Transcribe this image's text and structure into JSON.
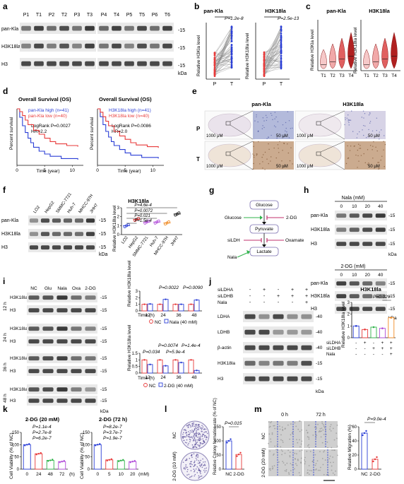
{
  "colors": {
    "blue": "#2b3fd6",
    "red": "#e83a3a",
    "green": "#2fb34a",
    "purple": "#b04ad8",
    "orange": "#f08a24",
    "dark_red": "#7b1a1a",
    "blot_band": "#2a2a2a",
    "blot_bg": "#e9e9e9",
    "ihc_brown": "#b98f6a",
    "ihc_blue": "#9aa3cf"
  },
  "panels": {
    "a": {
      "label": "a",
      "lanes_left": [
        "P1",
        "T1",
        "P2",
        "T2",
        "P3",
        "T3"
      ],
      "lanes_right": [
        "P4",
        "T4",
        "P5",
        "T5",
        "P6",
        "T6"
      ],
      "rows": [
        "pan-Kla",
        "H3K18la",
        "H3"
      ],
      "marker_top": "-15",
      "marker_mid": "-15",
      "marker_bottom": "-15",
      "unit": "kDa"
    },
    "b": {
      "label": "b",
      "left_title": "pan-Kla",
      "left_p": "P=1.2e-8",
      "left_ylabel": "Relative H3Kla level",
      "right_title": "H3K18la",
      "right_p": "P=2.5e-13",
      "right_ylabel": "Relative H3K18la level",
      "xticks": [
        "P",
        "T"
      ]
    },
    "c": {
      "label": "c",
      "left_title": "pan-Kla",
      "right_title": "H3K18la",
      "left_ylabel": "Relative H3Kla level",
      "right_ylabel": "Relative H3K18la level",
      "xticks": [
        "T1",
        "T2",
        "T3",
        "T4"
      ]
    },
    "d": {
      "label": "d",
      "left": {
        "title": "Overall Survival (OS)",
        "legend_high": "pan-Kla high (n=41)",
        "legend_low": "pan-Kla low (n=40)",
        "stat1": "LogRank P=0.0027",
        "stat2": "HR=2.2",
        "xlabel": "Time (year)",
        "ylabel": "Percent survival"
      },
      "right": {
        "title": "Overall Survival (OS)",
        "legend_high": "H3K18la high (n=41)",
        "legend_low": "H3K18la low (n=40)",
        "stat1": "LogRank P=0.0086",
        "stat2": "HR=2.0",
        "xlabel": "Time (year)",
        "ylabel": "Percent survival"
      },
      "xticks": [
        "0",
        "5",
        "10"
      ]
    },
    "e": {
      "label": "e",
      "title_left": "pan-Kla",
      "title_right": "H3K18la",
      "row_p": "P",
      "row_t": "T",
      "scale_large": "1000 μM",
      "scale_small": "50 μM"
    },
    "f": {
      "label": "f",
      "lanes": [
        "LO2",
        "HepG2",
        "SMMC-7721",
        "Huh-7",
        "MHCC-97H",
        "JHH7"
      ],
      "rows": [
        "pan-Kla",
        "H3K18la",
        "H3"
      ],
      "marker": "-15",
      "unit": "kDa",
      "chart_title": "H3K18la",
      "ylabel": "Relative H3K18la level",
      "p1": "P=4.6e-4",
      "p2": "P=0.0072",
      "p3": "P=0.021",
      "p4": "P=1.5e-4"
    },
    "g": {
      "label": "g",
      "glucose": "Glucose",
      "pyruvate": "Pyruvate",
      "lactate": "Lactate",
      "glucose_in": "Glucose",
      "dg": "2-DG",
      "silhd": "siLDH",
      "oxamate": "Oxamate",
      "nala": "Nala"
    },
    "h": {
      "label": "h",
      "top_title": "Nala (mM)",
      "top_doses": [
        "0",
        "10",
        "20",
        "40"
      ],
      "bottom_title": "2-DG (mM)",
      "bottom_doses": [
        "0",
        "10",
        "20",
        "40"
      ],
      "rows": [
        "pan-Kla",
        "H3K18la",
        "H3"
      ],
      "marker": "-15",
      "unit": "kDa"
    },
    "i": {
      "label": "i",
      "lanes": [
        "NC",
        "Glu",
        "Nala",
        "Oxa",
        "2-DG"
      ],
      "times": [
        "12 h",
        "24 h",
        "36 h",
        "48 h"
      ],
      "rows": [
        "H3K18la",
        "H3"
      ],
      "marker": "-15",
      "unit": "kDa",
      "ylabel": "Relative H3K18la level",
      "time_label": "Time (h)",
      "xticks": [
        "12",
        "24",
        "36",
        "48"
      ],
      "top_p1": "P=0.0022",
      "top_p2": "P=0.0090",
      "top_legend_nc": "NC",
      "top_legend_trt": "Nala (40 mM)",
      "bottom_p1": "P=0.0074",
      "bottom_p2": "P=1.4e-4",
      "bottom_p3": "P=0.034",
      "bottom_p4": "P=5.9e-4",
      "bottom_legend_nc": "NC",
      "bottom_legend_trt": "2-DG (40 mM)"
    },
    "j": {
      "label": "j",
      "cond_rows": [
        "siLDHA",
        "siLDHB",
        "Nala"
      ],
      "matrix": [
        [
          "-",
          "+",
          "-",
          "+",
          "+"
        ],
        [
          "-",
          "-",
          "+",
          "+",
          "+"
        ],
        [
          "-",
          "-",
          "-",
          "-",
          "+"
        ]
      ],
      "rows": [
        "LDHA",
        "LDHB",
        "β-actin",
        "H3K18la",
        "H3"
      ],
      "markers": [
        "-40",
        "-40",
        "-40",
        "-15",
        "-15"
      ],
      "unit": "kDa",
      "chart_title": "H3K18la",
      "ylabel": "Relative H3K18la level",
      "p": "P=0.029",
      "chart_matrix": [
        [
          "-",
          "+",
          "-",
          "+",
          "+"
        ],
        [
          "-",
          "-",
          "+",
          "+",
          "+"
        ],
        [
          "-",
          "-",
          "-",
          "-",
          "+"
        ]
      ]
    },
    "k": {
      "label": "k",
      "left_title": "2-DG (20 mM)",
      "left_p1": "P=1.1e-4",
      "left_p2": "P=2.7e-8",
      "left_p3": "P=6.2e-7",
      "left_xticks": [
        "0",
        "24",
        "48",
        "72"
      ],
      "left_xunit": "(h)",
      "right_title": "2-DG (72 h)",
      "right_p1": "P=8.2e-7",
      "right_p2": "P=3.7e-7",
      "right_p3": "P=1.9e-7",
      "right_xticks": [
        "0",
        "5",
        "10",
        "20"
      ],
      "right_xunit": "(mM)",
      "ylabel": "Cell Viability (% of NC)"
    },
    "l": {
      "label": "l",
      "nc": "NC",
      "dg": "2-DG (10 mM)",
      "p": "P=0.015",
      "ylabel": "Relative Colony formation rate (% of NC)",
      "xticks": [
        "NC",
        "2-DG"
      ]
    },
    "m": {
      "label": "m",
      "t0": "0 h",
      "t72": "72 h",
      "nc": "NC",
      "dg": "2-DG (20 mM)",
      "p": "P=9.0e-4",
      "ylabel": "Relative Migration (%)",
      "xticks": [
        "NC",
        "2-DG"
      ]
    }
  },
  "chart_data": [
    {
      "type": "bar",
      "panel": "f",
      "title": "H3K18la",
      "ylabel": "Relative H3K18la level",
      "categories": [
        "LO2",
        "HepG2",
        "SMMC-7721",
        "Huh-7",
        "MHCC-97H",
        "JHH7"
      ],
      "values": [
        1.0,
        1.7,
        1.4,
        1.4,
        1.3,
        2.3
      ],
      "ylim": [
        0,
        3
      ],
      "yticks": [
        0,
        1,
        2,
        3
      ]
    },
    {
      "type": "bar",
      "panel": "i-top",
      "ylabel": "Relative H3K18la level",
      "categories": [
        "12",
        "24",
        "36",
        "48"
      ],
      "series": [
        {
          "name": "NC",
          "values": [
            1.0,
            1.0,
            1.0,
            1.0
          ]
        },
        {
          "name": "Nala (40 mM)",
          "values": [
            1.05,
            1.75,
            1.0,
            1.65
          ]
        }
      ],
      "ylim": [
        0,
        3
      ],
      "yticks": [
        0,
        1,
        2,
        3
      ]
    },
    {
      "type": "bar",
      "panel": "i-bottom",
      "ylabel": "Relative H3K18la level",
      "categories": [
        "12",
        "24",
        "36",
        "48"
      ],
      "series": [
        {
          "name": "NC",
          "values": [
            1.0,
            1.0,
            1.0,
            1.0
          ]
        },
        {
          "name": "2-DG (40 mM)",
          "values": [
            0.65,
            0.55,
            0.8,
            0.2
          ]
        }
      ],
      "ylim": [
        0,
        1.5
      ],
      "yticks": [
        0,
        0.5,
        1.0,
        1.5
      ]
    },
    {
      "type": "bar",
      "panel": "j",
      "title": "H3K18la",
      "ylabel": "Relative H3K18la level",
      "categories": [
        "1",
        "2",
        "3",
        "4",
        "5"
      ],
      "values": [
        1.0,
        0.7,
        0.9,
        0.8,
        1.7
      ],
      "ylim": [
        0,
        3
      ],
      "yticks": [
        0,
        1,
        2,
        3
      ]
    },
    {
      "type": "bar",
      "panel": "k-left",
      "title": "2-DG (20 mM)",
      "ylabel": "Cell Viability (% of NC)",
      "categories": [
        "0",
        "24",
        "48",
        "72"
      ],
      "values": [
        100,
        63,
        36,
        31
      ],
      "ylim": [
        0,
        150
      ],
      "yticks": [
        0,
        50,
        100,
        150
      ]
    },
    {
      "type": "bar",
      "panel": "k-right",
      "title": "2-DG (72 h)",
      "ylabel": "Cell Viability (% of NC)",
      "categories": [
        "0",
        "5",
        "10",
        "20"
      ],
      "values": [
        100,
        38,
        35,
        31
      ],
      "ylim": [
        0,
        150
      ],
      "yticks": [
        0,
        50,
        100,
        150
      ]
    },
    {
      "type": "bar",
      "panel": "l",
      "ylabel": "Relative Colony formation rate (% of NC)",
      "categories": [
        "NC",
        "2-DG"
      ],
      "values": [
        100,
        52
      ],
      "ylim": [
        0,
        150
      ],
      "yticks": [
        0,
        50,
        100,
        150
      ]
    },
    {
      "type": "bar",
      "panel": "m",
      "ylabel": "Relative Migration (%)",
      "categories": [
        "NC",
        "2-DG"
      ],
      "values": [
        51,
        14
      ],
      "ylim": [
        0,
        60
      ],
      "yticks": [
        0,
        20,
        40,
        60
      ]
    },
    {
      "type": "line",
      "panel": "d-left",
      "title": "Overall Survival (OS)",
      "xlabel": "Time (year)",
      "ylabel": "Percent survival",
      "series": [
        {
          "name": "pan-Kla high (n=41)",
          "x": [
            0,
            0.5,
            1,
            1.5,
            2,
            2.5,
            3,
            4,
            5,
            6,
            8,
            11
          ],
          "y": [
            100,
            85,
            70,
            58,
            48,
            40,
            32,
            25,
            20,
            16,
            12,
            10
          ]
        },
        {
          "name": "pan-Kla low (n=40)",
          "x": [
            0,
            0.5,
            1,
            1.5,
            2,
            3,
            4,
            5,
            6,
            7,
            9,
            11
          ],
          "y": [
            100,
            95,
            88,
            80,
            72,
            62,
            55,
            48,
            42,
            38,
            35,
            33
          ]
        }
      ],
      "xlim": [
        0,
        12
      ],
      "ylim": [
        0,
        100
      ]
    },
    {
      "type": "line",
      "panel": "d-right",
      "title": "Overall Survival (OS)",
      "xlabel": "Time (year)",
      "ylabel": "Percent survival",
      "series": [
        {
          "name": "H3K18la high (n=41)",
          "x": [
            0,
            0.5,
            1,
            1.5,
            2,
            2.5,
            3,
            4,
            5,
            6,
            8,
            11
          ],
          "y": [
            100,
            86,
            72,
            60,
            50,
            42,
            35,
            28,
            22,
            18,
            14,
            12
          ]
        },
        {
          "name": "H3K18la low (n=40)",
          "x": [
            0,
            0.5,
            1,
            1.5,
            2,
            3,
            4,
            5,
            6,
            7,
            9,
            11
          ],
          "y": [
            100,
            94,
            86,
            78,
            70,
            60,
            52,
            46,
            40,
            36,
            33,
            31
          ]
        }
      ],
      "xlim": [
        0,
        12
      ],
      "ylim": [
        0,
        100
      ]
    }
  ]
}
